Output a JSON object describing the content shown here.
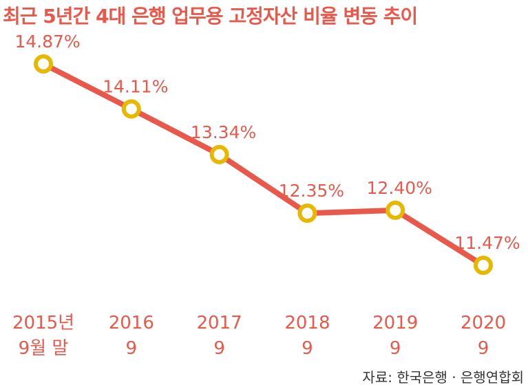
{
  "title": "최근 5년간 4대 은행 업무용 고정자산 비율 변동 추이",
  "source": "자료: 한국은행 · 은행연합회",
  "colors": {
    "title": "#e8594c",
    "line": "#e8594c",
    "marker": "#e8b800",
    "label": "#e8594c",
    "source": "#333333"
  },
  "chart_data": {
    "type": "line",
    "title": "최근 5년간 4대 은행 업무용 고정자산 비율 변동 추이",
    "categories": [
      [
        "2015년",
        "9월 말"
      ],
      [
        "2016",
        "9"
      ],
      [
        "2017",
        "9"
      ],
      [
        "2018",
        "9"
      ],
      [
        "2019",
        "9"
      ],
      [
        "2020",
        "9"
      ]
    ],
    "values": [
      14.87,
      14.11,
      13.34,
      12.35,
      12.4,
      11.47
    ],
    "data_labels": [
      "14.87%",
      "14.11%",
      "13.34%",
      "12.35%",
      "12.40%",
      "11.47%"
    ],
    "unit": "%",
    "ylim": [
      11.47,
      14.87
    ],
    "grid": false,
    "axes_visible": false
  }
}
